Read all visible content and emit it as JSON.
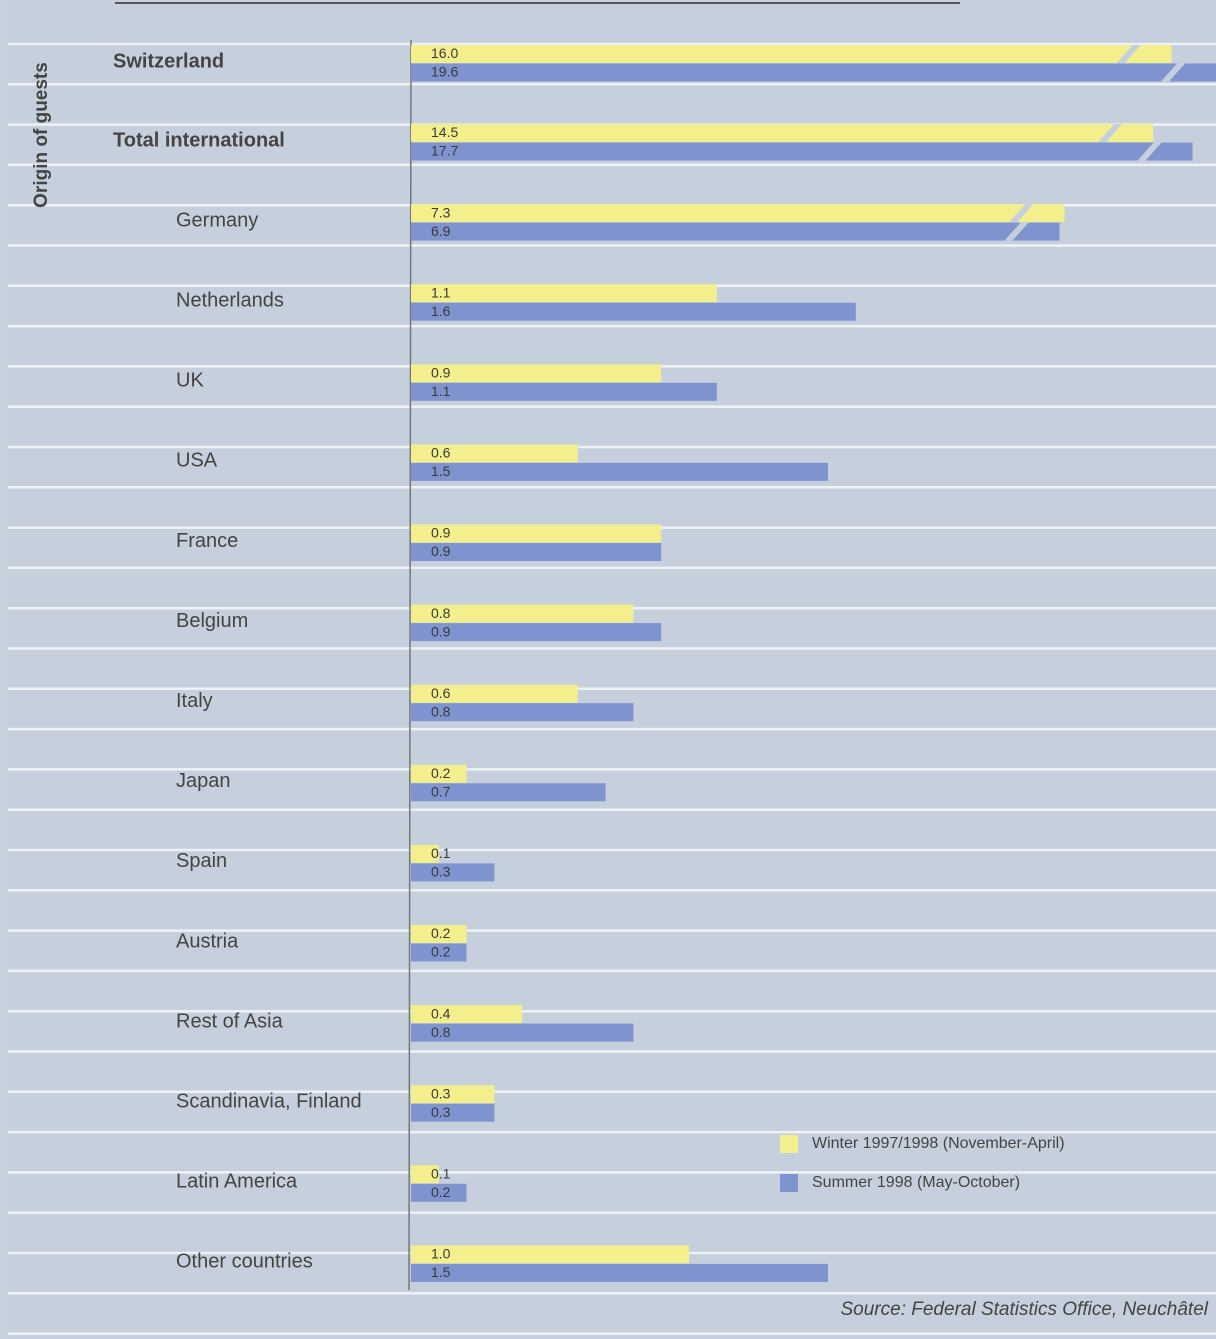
{
  "chart_data": {
    "type": "bar",
    "orientation": "horizontal",
    "y_label": "Origin of guests",
    "source": "Source: Federal Statistics Office, Neuchâtel",
    "categories": [
      "Switzerland",
      "Total international",
      "Germany",
      "Netherlands",
      "UK",
      "USA",
      "France",
      "Belgium",
      "Italy",
      "Japan",
      "Spain",
      "Austria",
      "Rest of Asia",
      "Scandinavia, Finland",
      "Latin America",
      "Other countries"
    ],
    "series": [
      {
        "name": "Winter 1997/1998 (November-April)",
        "color": "#f2ef8c",
        "values": [
          16.0,
          14.5,
          7.3,
          1.1,
          0.9,
          0.6,
          0.9,
          0.8,
          0.6,
          0.2,
          0.1,
          0.2,
          0.4,
          0.3,
          0.1,
          1.0
        ],
        "value_labels": [
          "16.0",
          "14.5",
          "7.3",
          "1.1",
          "0.9",
          "0.6",
          "0.9",
          "0.8",
          "0.6",
          "0.2",
          "0.1",
          "0.2",
          "0.4",
          "0.3",
          "0.1",
          "1.0"
        ]
      },
      {
        "name": "Summer 1998 (May-October)",
        "color": "#7f93cf",
        "values": [
          19.6,
          17.7,
          6.9,
          1.6,
          1.1,
          1.5,
          0.9,
          0.9,
          0.8,
          0.7,
          0.3,
          0.2,
          0.8,
          0.3,
          0.2,
          1.5
        ],
        "value_labels": [
          "19.6",
          "17.7",
          "6.9",
          "1.6",
          "1.1",
          "1.5",
          "0.9",
          "0.9",
          "0.8",
          "0.7",
          "0.3",
          "0.2",
          "0.8",
          "0.3",
          "0.2",
          "1.5"
        ]
      }
    ]
  }
}
